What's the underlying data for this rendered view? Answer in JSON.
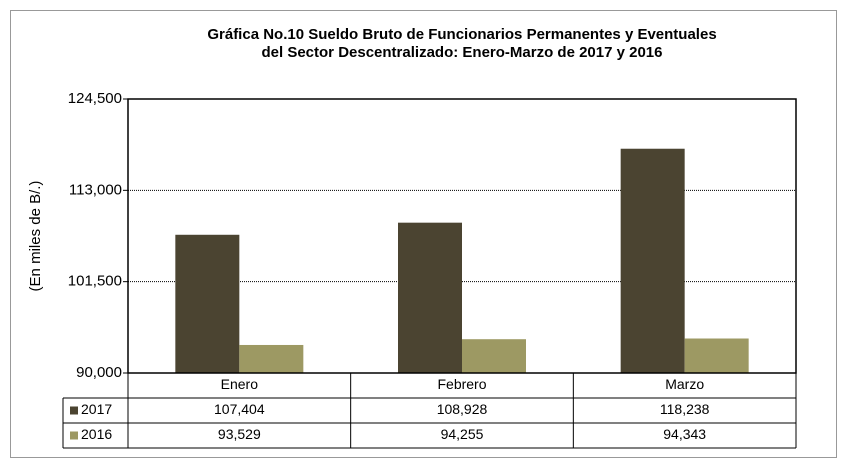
{
  "chart_data": {
    "type": "bar",
    "title": [
      "Gráfica No.10 Sueldo Bruto de Funcionarios Permanentes y Eventuales",
      "del Sector Descentralizado: Enero-Marzo de 2017 y 2016"
    ],
    "y_label": "(En miles de B/.)",
    "categories": [
      "Enero",
      "Febrero",
      "Marzo"
    ],
    "series": [
      {
        "name": "2017",
        "color": "#4b4431",
        "values": [
          107404,
          108928,
          118238
        ],
        "value_labels": [
          "107,404",
          "108,928",
          "118,238"
        ]
      },
      {
        "name": "2016",
        "color": "#9d9963",
        "values": [
          93529,
          94255,
          94343
        ],
        "value_labels": [
          "93,529",
          "94,255",
          "94,343"
        ]
      }
    ],
    "ylim": [
      90000,
      124500
    ],
    "yticks": [
      {
        "value": 90000,
        "label": "90,000"
      },
      {
        "value": 101500,
        "label": "101,500"
      },
      {
        "value": 113000,
        "label": "113,000"
      },
      {
        "value": 124500,
        "label": "124,500"
      }
    ],
    "grid": true
  }
}
